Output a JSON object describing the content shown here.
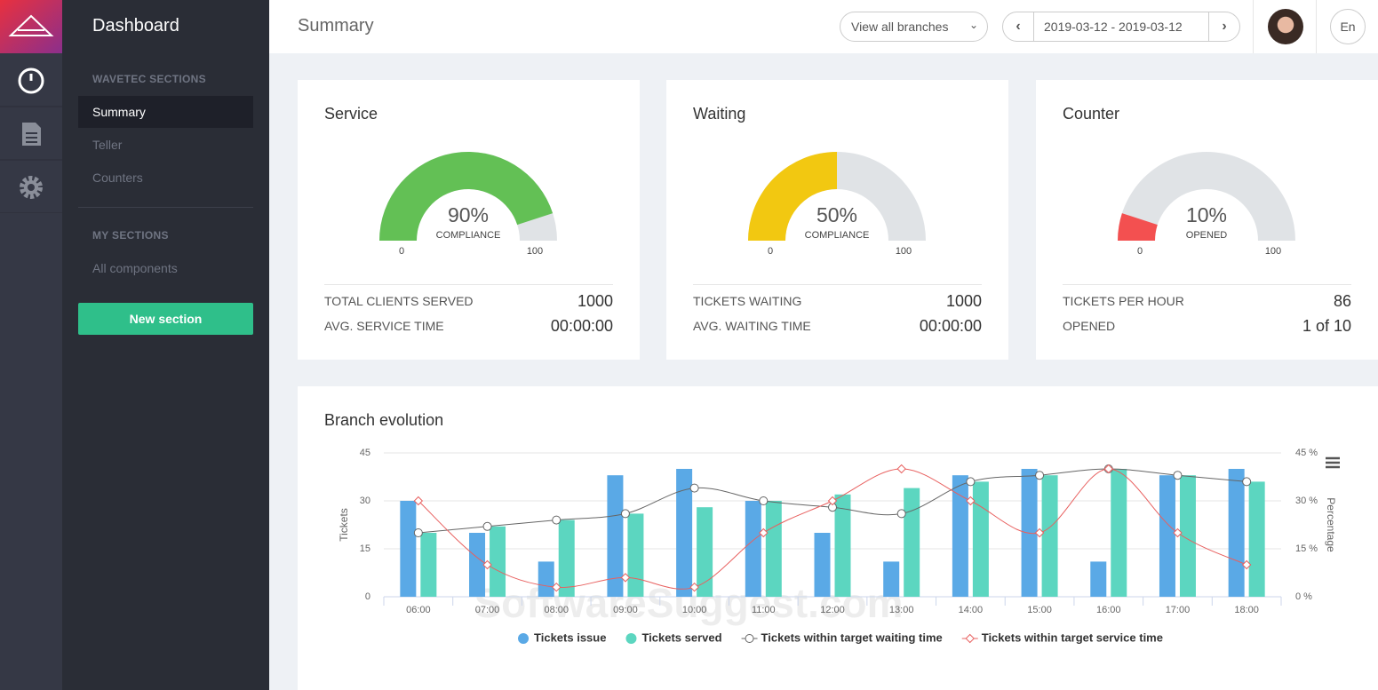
{
  "sidebar": {
    "title": "Dashboard",
    "groups": [
      {
        "heading": "WAVETEC SECTIONS",
        "items": [
          "Summary",
          "Teller",
          "Counters"
        ]
      },
      {
        "heading": "MY SECTIONS",
        "items": [
          "All components"
        ]
      }
    ],
    "button": "New section"
  },
  "header": {
    "title": "Summary",
    "branch_filter": "View all branches",
    "date_range": "2019-03-12 - 2019-03-12",
    "language": "En"
  },
  "cards": [
    {
      "title": "Service",
      "gauge": {
        "value": 90,
        "value_label": "90%",
        "caption": "COMPLIANCE",
        "min": 0,
        "max": 100,
        "color": "#63c055"
      },
      "stats": [
        {
          "label": "TOTAL CLIENTS SERVED",
          "value": 1000
        },
        {
          "label": "AVG. SERVICE TIME",
          "value": "00:00:00"
        }
      ]
    },
    {
      "title": "Waiting",
      "gauge": {
        "value": 50,
        "value_label": "50%",
        "caption": "COMPLIANCE",
        "min": 0,
        "max": 100,
        "color": "#f2c811"
      },
      "stats": [
        {
          "label": "TICKETS WAITING",
          "value": 1000
        },
        {
          "label": "AVG. WAITING TIME",
          "value": "00:00:00"
        }
      ]
    },
    {
      "title": "Counter",
      "gauge": {
        "value": 10,
        "value_label": "10%",
        "caption": "OPENED",
        "min": 0,
        "max": 100,
        "color": "#f35050"
      },
      "stats": [
        {
          "label": "TICKETS PER HOUR",
          "value": 86
        },
        {
          "label": "OPENED",
          "value": "1 of 10"
        }
      ]
    }
  ],
  "watermark": "SoftwareSuggest.com",
  "chart_data": {
    "type": "bar",
    "title": "Branch evolution",
    "ylabel": "Tickets",
    "y2label": "Percentage",
    "categories": [
      "06:00",
      "07:00",
      "08:00",
      "09:00",
      "10:00",
      "11:00",
      "12:00",
      "13:00",
      "14:00",
      "15:00",
      "16:00",
      "17:00",
      "18:00"
    ],
    "ylim": [
      0,
      45
    ],
    "yticks": [
      0,
      15,
      30,
      45
    ],
    "y2lim": [
      0,
      45
    ],
    "y2ticks": [
      {
        "value": 0,
        "label": "0 %"
      },
      {
        "value": 15,
        "label": "15 %"
      },
      {
        "value": 30,
        "label": "30 %"
      },
      {
        "value": 45,
        "label": "45 %"
      }
    ],
    "grid": true,
    "legend": "bottom",
    "series": [
      {
        "name": "Tickets issue",
        "color": "#5aa9e6",
        "values": [
          30,
          20,
          11,
          38,
          40,
          30,
          20,
          11,
          38,
          40,
          11,
          38,
          40
        ]
      },
      {
        "name": "Tickets served",
        "color": "#5cd6c0",
        "values": [
          20,
          22,
          24,
          26,
          28,
          30,
          32,
          34,
          36,
          38,
          40,
          38,
          36
        ]
      },
      {
        "name": "Tickets within target waiting time",
        "type": "line",
        "marker": "circle",
        "axis": "y2",
        "color": "#666666",
        "values": [
          20,
          22,
          24,
          26,
          34,
          30,
          28,
          26,
          36,
          38,
          40,
          38,
          36
        ]
      },
      {
        "name": "Tickets within target service time",
        "type": "line",
        "marker": "diamond",
        "axis": "y2",
        "color": "#e8605f",
        "values": [
          30,
          10,
          3,
          6,
          3,
          20,
          30,
          40,
          30,
          20,
          40,
          20,
          10
        ]
      }
    ]
  }
}
